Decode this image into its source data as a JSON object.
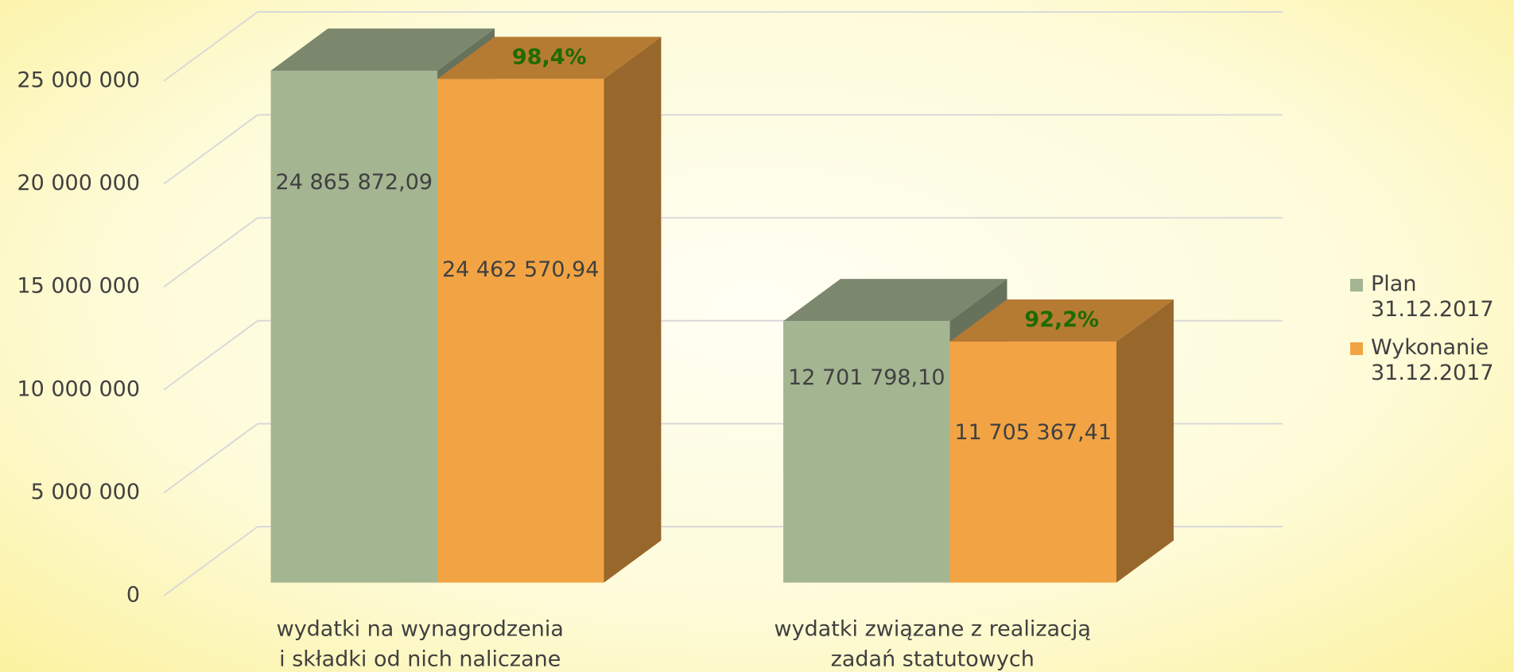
{
  "chart_data": {
    "type": "bar3d",
    "categories": [
      [
        "wydatki na wynagrodzenia",
        "i składki od nich naliczane"
      ],
      [
        "wydatki związane z realizacją",
        "zadań statutowych"
      ]
    ],
    "series": [
      {
        "name": "Plan 31.12.2017",
        "color": "#a4b592",
        "values": [
          24865872.09,
          12701798.1
        ],
        "value_labels": [
          "24 865 872,09",
          "12 701 798,10"
        ]
      },
      {
        "name": "Wykonanie 31.12.2017",
        "color": "#f2a444",
        "values": [
          24462570.94,
          11705367.41
        ],
        "value_labels": [
          "24 462 570,94",
          "11 705 367,41"
        ]
      }
    ],
    "annotations": [
      "98,4%",
      "92,2%"
    ],
    "ylim": [
      0,
      25000000
    ],
    "yticks": [
      {
        "value": 0,
        "label": "0"
      },
      {
        "value": 5000000,
        "label": "5 000 000"
      },
      {
        "value": 10000000,
        "label": "10 000 000"
      },
      {
        "value": 15000000,
        "label": "15 000 000"
      },
      {
        "value": 20000000,
        "label": "20 000 000"
      },
      {
        "value": 25000000,
        "label": "25 000 000"
      }
    ],
    "grid": true,
    "legend": "right"
  }
}
